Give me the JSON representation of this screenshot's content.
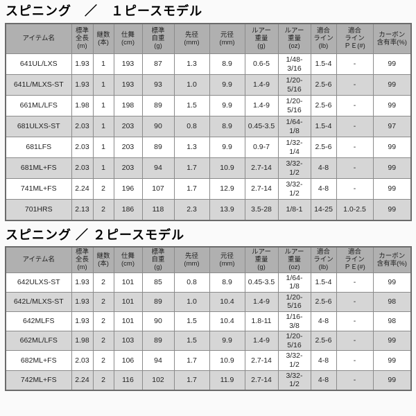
{
  "colors": {
    "page_bg": "#f1f1f1",
    "header_bg": "#b0b0b0",
    "stripe_bg": "#d6d6d6",
    "row_bg": "#ffffff",
    "border": "#8a8a8a",
    "text": "#1f1f1f"
  },
  "sections": [
    {
      "title": "スピニング　／　１ピースモデル",
      "columns": [
        "アイテム名",
        "標準\n全長\n(m)",
        "継数\n(本)",
        "仕舞\n(cm)",
        "標準\n自重\n(g)",
        "先径\n(mm)",
        "元径\n(mm)",
        "ルアー\n重量\n(g)",
        "ルアー\n重量\n(oz)",
        "適合\nライン\n(lb)",
        "適合\nライン\nＰＥ(#)",
        "カーボン\n含有率(%)"
      ],
      "rows": [
        [
          "641UL/LXS",
          "1.93",
          "1",
          "193",
          "87",
          "1.3",
          "8.9",
          "0.6-5",
          "1/48-\n3/16",
          "1.5-4",
          "-",
          "99"
        ],
        [
          "641L/MLXS-ST",
          "1.93",
          "1",
          "193",
          "93",
          "1.0",
          "9.9",
          "1.4-9",
          "1/20-\n5/16",
          "2.5-6",
          "-",
          "99"
        ],
        [
          "661ML/LFS",
          "1.98",
          "1",
          "198",
          "89",
          "1.5",
          "9.9",
          "1.4-9",
          "1/20-\n5/16",
          "2.5-6",
          "-",
          "99"
        ],
        [
          "681ULXS-ST",
          "2.03",
          "1",
          "203",
          "90",
          "0.8",
          "8.9",
          "0.45-3.5",
          "1/64-\n1/8",
          "1.5-4",
          "-",
          "97"
        ],
        [
          "681LFS",
          "2.03",
          "1",
          "203",
          "89",
          "1.3",
          "9.9",
          "0.9-7",
          "1/32-\n1/4",
          "2.5-6",
          "-",
          "99"
        ],
        [
          "681ML+FS",
          "2.03",
          "1",
          "203",
          "94",
          "1.7",
          "10.9",
          "2.7-14",
          "3/32-\n1/2",
          "4-8",
          "-",
          "99"
        ],
        [
          "741ML+FS",
          "2.24",
          "2",
          "196",
          "107",
          "1.7",
          "12.9",
          "2.7-14",
          "3/32-\n1/2",
          "4-8",
          "-",
          "99"
        ],
        [
          "701HRS",
          "2.13",
          "2",
          "186",
          "118",
          "2.3",
          "13.9",
          "3.5-28",
          "1/8-1",
          "14-25",
          "1.0-2.5",
          "99"
        ]
      ]
    },
    {
      "title": "スピニング ／ ２ピースモデル",
      "columns": [
        "アイテム名",
        "標準\n全長\n(m)",
        "継数\n(本)",
        "仕舞\n(cm)",
        "標準\n自重\n(g)",
        "先径\n(mm)",
        "元径\n(mm)",
        "ルアー\n重量\n(g)",
        "ルアー\n重量\n(oz)",
        "適合\nライン\n(lb)",
        "適合\nライン\nＰＥ(#)",
        "カーボン\n含有率(%)"
      ],
      "rows": [
        [
          "642ULXS-ST",
          "1.93",
          "2",
          "101",
          "85",
          "0.8",
          "8.9",
          "0.45-3.5",
          "1/64-\n1/8",
          "1.5-4",
          "-",
          "99"
        ],
        [
          "642L/MLXS-ST",
          "1.93",
          "2",
          "101",
          "89",
          "1.0",
          "10.4",
          "1.4-9",
          "1/20-\n5/16",
          "2.5-6",
          "-",
          "98"
        ],
        [
          "642MLFS",
          "1.93",
          "2",
          "101",
          "90",
          "1.5",
          "10.4",
          "1.8-11",
          "1/16-\n3/8",
          "4-8",
          "-",
          "98"
        ],
        [
          "662ML/LFS",
          "1.98",
          "2",
          "103",
          "89",
          "1.5",
          "9.9",
          "1.4-9",
          "1/20-\n5/16",
          "2.5-6",
          "-",
          "99"
        ],
        [
          "682ML+FS",
          "2.03",
          "2",
          "106",
          "94",
          "1.7",
          "10.9",
          "2.7-14",
          "3/32-\n1/2",
          "4-8",
          "-",
          "99"
        ],
        [
          "742ML+FS",
          "2.24",
          "2",
          "116",
          "102",
          "1.7",
          "11.9",
          "2.7-14",
          "3/32-\n1/2",
          "4-8",
          "-",
          "99"
        ]
      ]
    }
  ]
}
